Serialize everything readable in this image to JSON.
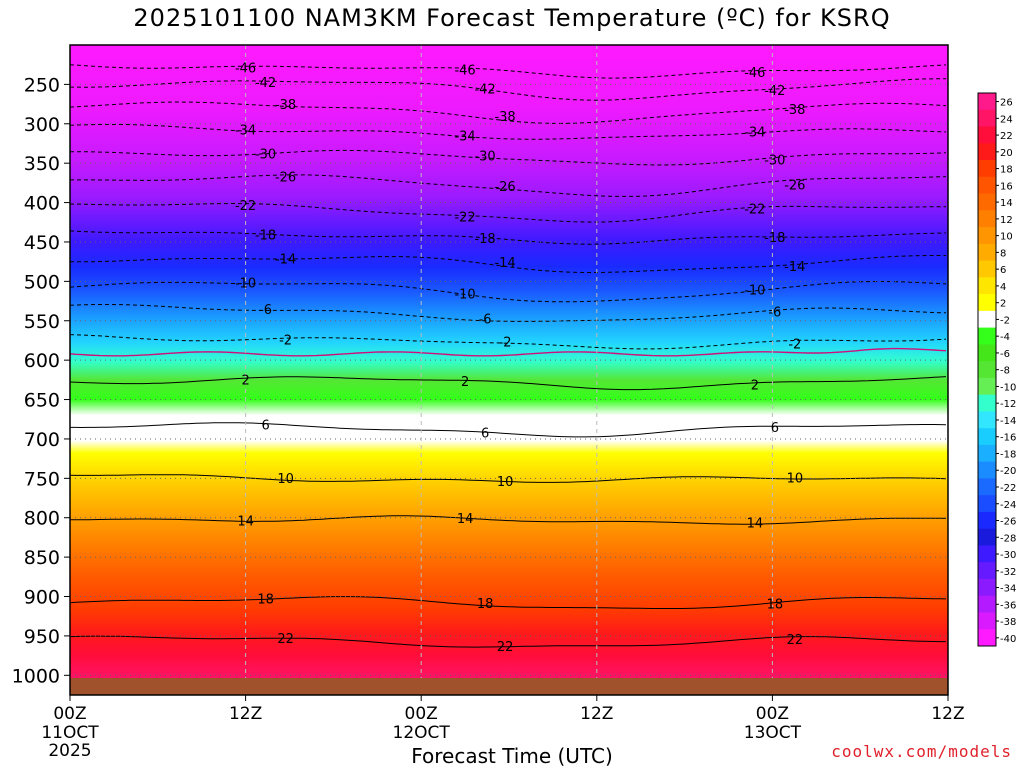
{
  "chart_data": {
    "type": "heatmap",
    "title": "2025101100 NAM3KM Forecast Temperature (ºC) for KSRQ",
    "xlabel": "Forecast Time (UTC)",
    "ylabel": "",
    "credit": "coolwx.com/models",
    "y_ticks": [
      "250",
      "300",
      "350",
      "400",
      "450",
      "500",
      "550",
      "600",
      "650",
      "700",
      "750",
      "800",
      "850",
      "900",
      "950",
      "1000"
    ],
    "x_ticks": [
      {
        "label": "00Z",
        "sub1": "11OCT",
        "sub2": "2025",
        "hour": 0
      },
      {
        "label": "12Z",
        "sub1": "",
        "sub2": "",
        "hour": 12
      },
      {
        "label": "00Z",
        "sub1": "12OCT",
        "sub2": "",
        "hour": 24
      },
      {
        "label": "12Z",
        "sub1": "",
        "sub2": "",
        "hour": 36
      },
      {
        "label": "00Z",
        "sub1": "13OCT",
        "sub2": "",
        "hour": 48
      },
      {
        "label": "12Z",
        "sub1": "",
        "sub2": "",
        "hour": 60
      }
    ],
    "pressure_range": [
      200,
      1025
    ],
    "hour_range": [
      0,
      60
    ],
    "colorbar_labels": [
      "26",
      "24",
      "22",
      "20",
      "18",
      "16",
      "14",
      "12",
      "10",
      "8",
      "6",
      "4",
      "2",
      "-2",
      "-4",
      "-6",
      "-8",
      "-10",
      "-12",
      "-14",
      "-16",
      "-18",
      "-20",
      "-22",
      "-24",
      "-26",
      "-28",
      "-30",
      "-32",
      "-34",
      "-36",
      "-38",
      "-40"
    ],
    "colorbar_colors": [
      "#ff1a8c",
      "#ff1466",
      "#ff0d3b",
      "#ff1a1a",
      "#ff3d00",
      "#ff5500",
      "#ff6a00",
      "#ff7f00",
      "#ff9500",
      "#ffab00",
      "#ffc800",
      "#ffe600",
      "#ffff00",
      "#ffffff",
      "#33ff1a",
      "#44e61a",
      "#55e633",
      "#66ee55",
      "#33ffcc",
      "#33e6ff",
      "#1acdff",
      "#1aafff",
      "#1a8cff",
      "#1a6aff",
      "#1a4dff",
      "#1a2aff",
      "#1a1add",
      "#3d1aff",
      "#661aff",
      "#8c1aff",
      "#b31aff",
      "#d91aff",
      "#ff1aff"
    ],
    "contours": [
      {
        "label": "-46",
        "p": 225
      },
      {
        "label": "-42",
        "p": 248
      },
      {
        "label": "-38",
        "p": 278
      },
      {
        "label": "-34",
        "p": 305
      },
      {
        "label": "-30",
        "p": 335
      },
      {
        "label": "-26",
        "p": 370
      },
      {
        "label": "-22",
        "p": 405
      },
      {
        "label": "-18",
        "p": 437
      },
      {
        "label": "-14",
        "p": 470
      },
      {
        "label": "-10",
        "p": 505
      },
      {
        "label": "-6",
        "p": 535
      },
      {
        "label": "-2",
        "p": 570
      },
      {
        "label": "2",
        "p": 625
      },
      {
        "label": "6",
        "p": 685
      },
      {
        "label": "10",
        "p": 748
      },
      {
        "label": "14",
        "p": 800
      },
      {
        "label": "18",
        "p": 905
      },
      {
        "label": "22",
        "p": 955
      }
    ]
  }
}
